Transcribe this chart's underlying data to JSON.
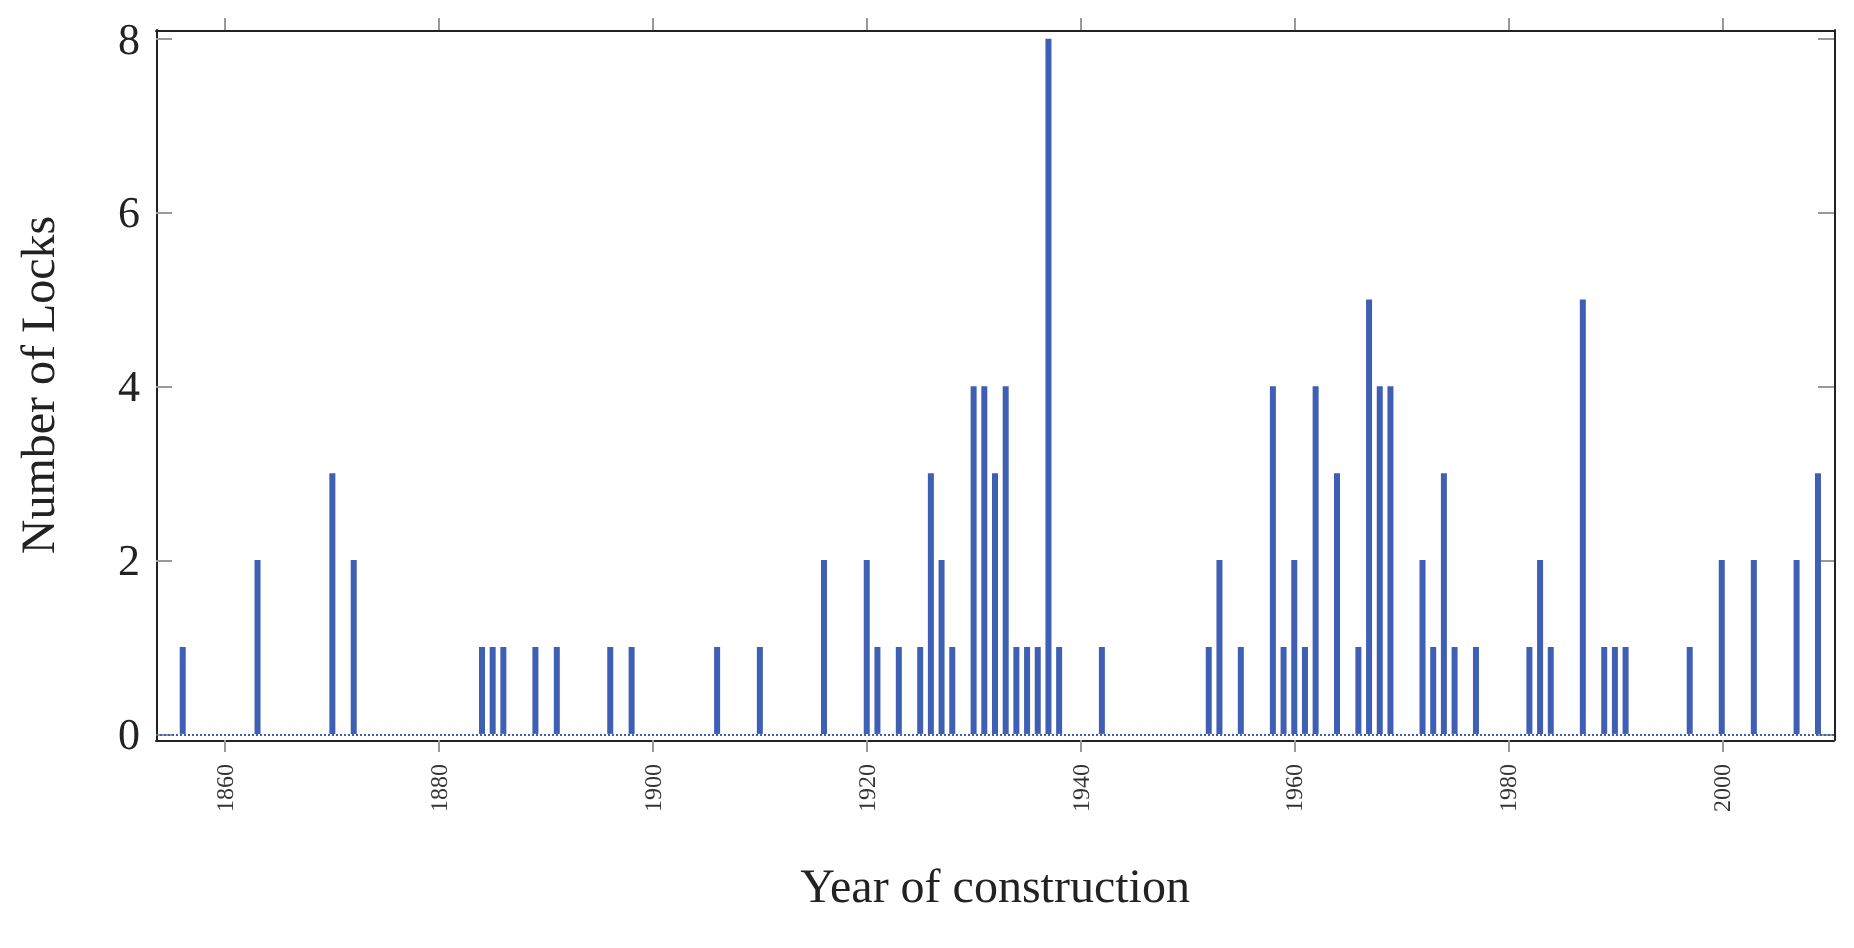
{
  "chart_data": {
    "type": "bar",
    "xlabel": "Year of construction",
    "ylabel": "Number of Locks",
    "x": [
      1856,
      1863,
      1870,
      1872,
      1884,
      1885,
      1886,
      1889,
      1891,
      1896,
      1898,
      1906,
      1910,
      1916,
      1920,
      1921,
      1923,
      1925,
      1926,
      1927,
      1928,
      1930,
      1931,
      1932,
      1933,
      1934,
      1935,
      1936,
      1937,
      1938,
      1942,
      1952,
      1953,
      1955,
      1958,
      1959,
      1960,
      1961,
      1962,
      1964,
      1966,
      1967,
      1968,
      1969,
      1972,
      1973,
      1974,
      1975,
      1977,
      1982,
      1983,
      1984,
      1987,
      1989,
      1990,
      1991,
      1997,
      2000,
      2003,
      2007,
      2009
    ],
    "values": [
      1,
      2,
      3,
      2,
      1,
      1,
      1,
      1,
      1,
      1,
      1,
      1,
      1,
      2,
      2,
      1,
      1,
      1,
      3,
      2,
      1,
      4,
      4,
      3,
      4,
      1,
      1,
      1,
      8,
      1,
      1,
      1,
      2,
      1,
      4,
      1,
      2,
      1,
      4,
      3,
      1,
      5,
      4,
      4,
      2,
      1,
      3,
      1,
      1,
      1,
      2,
      1,
      5,
      1,
      1,
      1,
      1,
      2,
      2,
      2,
      3
    ],
    "color": "#3f5fb5",
    "xlim": [
      1853.5,
      2010.5
    ],
    "xticks": [
      1860,
      1880,
      1900,
      1920,
      1940,
      1960,
      1980,
      2000
    ],
    "ylim": [
      -0.07,
      8.1
    ],
    "yticks": [
      0,
      2,
      4,
      6,
      8
    ],
    "ref_lines": [
      {
        "axis": "y",
        "value": 0,
        "color": "#3f5fb5",
        "line_style": "dotted"
      }
    ],
    "grid": false
  }
}
